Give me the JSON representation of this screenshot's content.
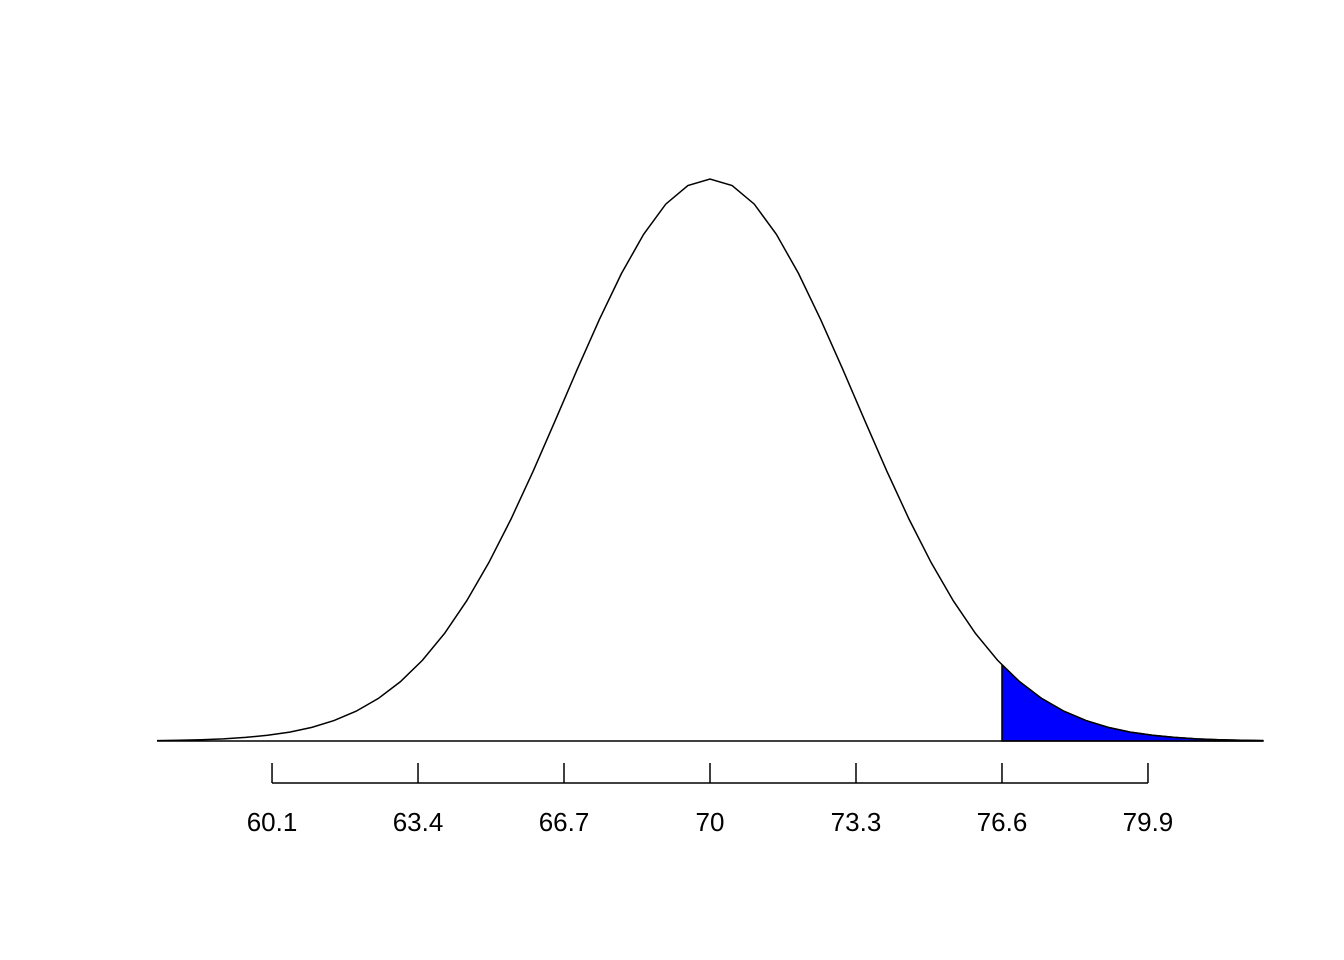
{
  "chart_data": {
    "type": "area",
    "x": [
      57.5,
      58,
      58.5,
      59,
      59.5,
      60,
      60.5,
      61,
      61.5,
      62,
      62.5,
      63,
      63.5,
      64,
      64.5,
      65,
      65.5,
      66,
      66.5,
      67,
      67.5,
      68,
      68.5,
      69,
      69.5,
      70,
      70.5,
      71,
      71.5,
      72,
      72.5,
      73,
      73.5,
      74,
      74.5,
      75,
      75.5,
      76,
      76.5,
      77,
      77.5,
      78,
      78.5,
      79,
      79.5,
      80,
      80.5,
      81,
      81.5,
      82,
      82.5
    ],
    "values": [
      9.26e-05,
      0.00016,
      0.00028,
      0.00047,
      0.00077,
      0.00123,
      0.00192,
      0.00293,
      0.00439,
      0.0064,
      0.00913,
      0.01274,
      0.01737,
      0.02315,
      0.03015,
      0.03836,
      0.0477,
      0.058,
      0.0689,
      0.07998,
      0.0907,
      0.1006,
      0.109,
      0.1155,
      0.1195,
      0.1209,
      0.1195,
      0.1155,
      0.109,
      0.1006,
      0.0907,
      0.07998,
      0.0689,
      0.058,
      0.0477,
      0.03836,
      0.03015,
      0.02315,
      0.01737,
      0.01274,
      0.00913,
      0.0064,
      0.00439,
      0.00293,
      0.00192,
      0.00123,
      0.00077,
      0.00047,
      0.00028,
      0.00016,
      9.26e-05
    ],
    "color": "#000000",
    "shade": {
      "color": "#0000ff",
      "x": [
        76.6,
        77,
        77.5,
        78,
        78.5,
        79,
        79.5,
        80,
        80.5,
        81,
        81.5,
        82,
        82.5
      ],
      "values": [
        0.01636,
        0.01274,
        0.00913,
        0.0064,
        0.00439,
        0.00293,
        0.00192,
        0.00123,
        0.00077,
        0.00047,
        0.00028,
        0.00016,
        9.26e-05
      ]
    },
    "xlim": [
      57.5,
      82.5
    ],
    "ylim": [
      0,
      0.1209
    ],
    "xticks": [
      60.1,
      63.4,
      66.7,
      70,
      73.3,
      76.6,
      79.9
    ]
  }
}
